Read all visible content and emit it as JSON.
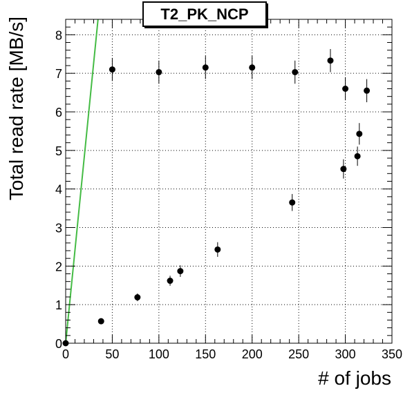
{
  "chart_data": {
    "type": "scatter",
    "title": "T2_PK_NCP",
    "xlabel": "# of jobs",
    "ylabel": "Total read rate [MB/s]",
    "xlim": [
      0,
      350
    ],
    "ylim": [
      0,
      8.4
    ],
    "x_ticks": [
      0,
      50,
      100,
      150,
      200,
      250,
      300,
      350
    ],
    "y_ticks": [
      0,
      1,
      2,
      3,
      4,
      5,
      6,
      7,
      8
    ],
    "grid": {
      "x": true,
      "y": true,
      "style": "dotted"
    },
    "series": [
      {
        "type": "points_with_error",
        "points": [
          {
            "x": 0,
            "y": 0.0,
            "err": 0.0
          },
          {
            "x": 38,
            "y": 0.57,
            "err": 0.05
          },
          {
            "x": 50,
            "y": 7.1,
            "err": 0.3
          },
          {
            "x": 77,
            "y": 1.19,
            "err": 0.1
          },
          {
            "x": 100,
            "y": 7.03,
            "err": 0.3
          },
          {
            "x": 112,
            "y": 1.62,
            "err": 0.13
          },
          {
            "x": 123,
            "y": 1.87,
            "err": 0.15
          },
          {
            "x": 150,
            "y": 7.15,
            "err": 0.3
          },
          {
            "x": 163,
            "y": 2.43,
            "err": 0.19
          },
          {
            "x": 200,
            "y": 7.15,
            "err": 0.3
          },
          {
            "x": 243,
            "y": 3.65,
            "err": 0.22
          },
          {
            "x": 246,
            "y": 7.03,
            "err": 0.3
          },
          {
            "x": 284,
            "y": 7.33,
            "err": 0.3
          },
          {
            "x": 298,
            "y": 4.52,
            "err": 0.25
          },
          {
            "x": 300,
            "y": 6.6,
            "err": 0.3
          },
          {
            "x": 313,
            "y": 4.85,
            "err": 0.25
          },
          {
            "x": 315,
            "y": 5.43,
            "err": 0.28
          },
          {
            "x": 323,
            "y": 6.55,
            "err": 0.3
          }
        ]
      },
      {
        "type": "line",
        "color": "#44bb44",
        "points": [
          {
            "x": 0,
            "y": 0
          },
          {
            "x": 34.7,
            "y": 8.4
          }
        ]
      }
    ]
  }
}
